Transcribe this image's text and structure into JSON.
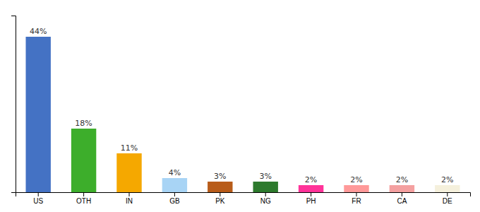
{
  "chart_data": {
    "type": "bar",
    "categories": [
      "US",
      "OTH",
      "IN",
      "GB",
      "PK",
      "NG",
      "PH",
      "FR",
      "CA",
      "DE"
    ],
    "values": [
      44,
      18,
      11,
      4,
      3,
      3,
      2,
      2,
      2,
      2
    ],
    "value_labels": [
      "44%",
      "18%",
      "11%",
      "4%",
      "3%",
      "3%",
      "2%",
      "2%",
      "2%",
      "2%"
    ],
    "colors": [
      "#4472c4",
      "#3dae2b",
      "#f5a800",
      "#a8d4f5",
      "#b85c1a",
      "#2d7a2d",
      "#ff3399",
      "#ff9999",
      "#f4a0a0",
      "#f5f0dc"
    ],
    "ylim": [
      0,
      50
    ],
    "yticks": [],
    "data_labels": true,
    "tick_labels": "x"
  }
}
